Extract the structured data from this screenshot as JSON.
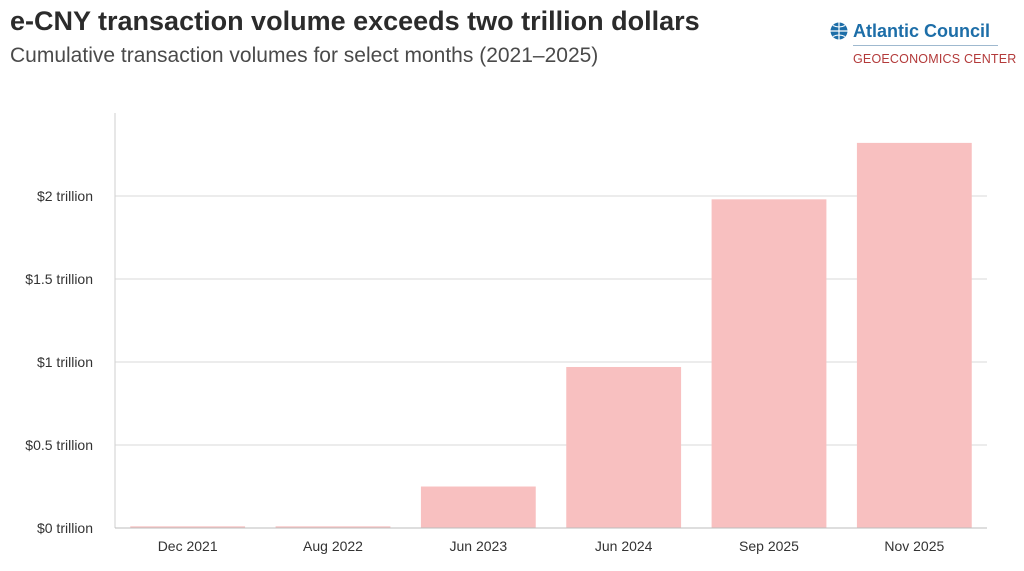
{
  "header": {
    "title": "e-CNY transaction volume exceeds two trillion dollars",
    "subtitle": "Cumulative transaction volumes for select months (2021–2025)"
  },
  "logo": {
    "name": "Atlantic Council",
    "center": "GEOECONOMICS CENTER",
    "icon": "globe-icon",
    "name_color": "#1d6ea8",
    "center_color": "#b33a3a"
  },
  "chart_data": {
    "type": "bar",
    "categories": [
      "Dec 2021",
      "Aug 2022",
      "Jun 2023",
      "Jun 2024",
      "Sep 2025",
      "Nov 2025"
    ],
    "values": [
      0.01,
      0.01,
      0.25,
      0.97,
      1.98,
      2.32
    ],
    "ylim": [
      0,
      2.5
    ],
    "yticks": [
      0,
      0.5,
      1,
      1.5,
      2
    ],
    "ytick_labels": [
      "$0 trillion",
      "$0.5 trillion",
      "$1 trillion",
      "$1.5 trillion",
      "$2 trillion"
    ],
    "grid": true,
    "bar_color": "#f8c0c0",
    "grid_color": "#d9d9d9"
  }
}
